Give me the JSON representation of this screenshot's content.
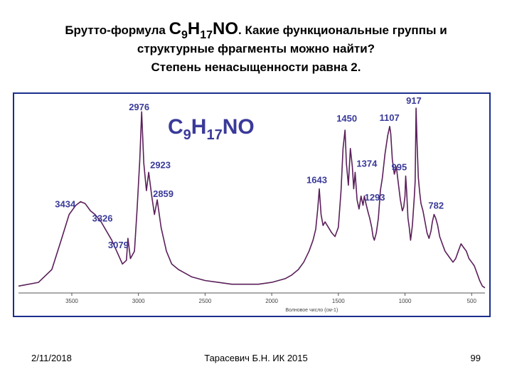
{
  "slide": {
    "title_prefix": "Брутто-формула",
    "formula": {
      "C": "C",
      "c_sub": "9",
      "H": "H",
      "h_sub": "17",
      "rest": "NO"
    },
    "title_suffix": ". Какие функциональные группы и",
    "title_line2": "структурные фрагменты можно найти?",
    "title_line3": "Степень ненасыщенности равна 2."
  },
  "footer": {
    "date": "2/11/2018",
    "author": "Тарасевич Б.Н. ИК 2015",
    "page": "99"
  },
  "colors": {
    "spectrum": "#5a1f5a",
    "frame": "#1c2f8c",
    "annotation": "#3a3a9a",
    "text": "#000000"
  },
  "chart_data": {
    "type": "line",
    "formula_label": {
      "C": "C",
      "c_sub": "9",
      "H": "H",
      "h_sub": "17",
      "rest": "NO"
    },
    "xlabel": "Волновое число (см-1)",
    "ylabel": "",
    "xlim": [
      3900,
      400
    ],
    "ylim": [
      0,
      100
    ],
    "x_reversed": true,
    "x_ticks": [
      3500,
      3000,
      2500,
      2000,
      1500,
      1000,
      500
    ],
    "series": [
      {
        "x": [
          3900,
          3750,
          3650,
          3580,
          3520,
          3470,
          3434,
          3400,
          3360,
          3326,
          3280,
          3200,
          3120,
          3090,
          3079,
          3060,
          3030,
          3010,
          2990,
          2976,
          2960,
          2940,
          2923,
          2900,
          2880,
          2859,
          2830,
          2790,
          2750,
          2700,
          2650,
          2600,
          2500,
          2400,
          2300,
          2200,
          2100,
          2000,
          1900,
          1850,
          1800,
          1760,
          1720,
          1690,
          1670,
          1655,
          1643,
          1630,
          1615,
          1600,
          1575,
          1550,
          1525,
          1500,
          1480,
          1465,
          1450,
          1440,
          1425,
          1410,
          1395,
          1385,
          1374,
          1360,
          1345,
          1330,
          1315,
          1305,
          1293,
          1280,
          1265,
          1250,
          1240,
          1230,
          1215,
          1200,
          1185,
          1170,
          1150,
          1130,
          1115,
          1107,
          1095,
          1080,
          1065,
          1055,
          1045,
          1035,
          1020,
          1010,
          1000,
          995,
          988,
          978,
          968,
          958,
          945,
          930,
          924,
          917,
          910,
          900,
          890,
          880,
          865,
          850,
          835,
          820,
          805,
          795,
          782,
          770,
          755,
          740,
          720,
          700,
          680,
          660,
          640,
          620,
          600,
          580,
          560,
          540,
          520,
          500,
          480,
          460,
          440,
          420,
          400
        ],
        "y": [
          3,
          5,
          12,
          28,
          42,
          47,
          49,
          48,
          44,
          42,
          38,
          28,
          15,
          17,
          29,
          18,
          22,
          45,
          72,
          98,
          70,
          55,
          65,
          52,
          42,
          50,
          35,
          22,
          15,
          12,
          10,
          8,
          6,
          5,
          4,
          4,
          4,
          5,
          7,
          9,
          12,
          16,
          22,
          28,
          34,
          45,
          56,
          42,
          36,
          38,
          35,
          32,
          30,
          35,
          55,
          78,
          88,
          70,
          58,
          78,
          68,
          56,
          65,
          50,
          45,
          52,
          47,
          52,
          48,
          44,
          40,
          35,
          30,
          28,
          32,
          40,
          55,
          62,
          75,
          85,
          90,
          86,
          72,
          64,
          68,
          62,
          56,
          50,
          44,
          46,
          52,
          63,
          55,
          40,
          35,
          28,
          36,
          52,
          60,
          100,
          82,
          62,
          54,
          48,
          44,
          38,
          32,
          29,
          33,
          38,
          42,
          40,
          36,
          30,
          26,
          22,
          20,
          18,
          16,
          18,
          22,
          26,
          24,
          22,
          18,
          16,
          14,
          10,
          6,
          3,
          2
        ]
      }
    ],
    "annotations": [
      {
        "text": "3434",
        "x": 3434,
        "y": 49
      },
      {
        "text": "3326",
        "x": 3326,
        "y": 42
      },
      {
        "text": "3079",
        "x": 3079,
        "y": 29
      },
      {
        "text": "2976",
        "x": 2976,
        "y": 98
      },
      {
        "text": "2923",
        "x": 2923,
        "y": 65
      },
      {
        "text": "2859",
        "x": 2859,
        "y": 50
      },
      {
        "text": "1643",
        "x": 1643,
        "y": 56
      },
      {
        "text": "1450",
        "x": 1450,
        "y": 88
      },
      {
        "text": "1374",
        "x": 1374,
        "y": 65
      },
      {
        "text": "1293",
        "x": 1293,
        "y": 48
      },
      {
        "text": "1107",
        "x": 1107,
        "y": 90
      },
      {
        "text": "995",
        "x": 995,
        "y": 63
      },
      {
        "text": "917",
        "x": 917,
        "y": 100
      },
      {
        "text": "782",
        "x": 782,
        "y": 42
      }
    ]
  }
}
